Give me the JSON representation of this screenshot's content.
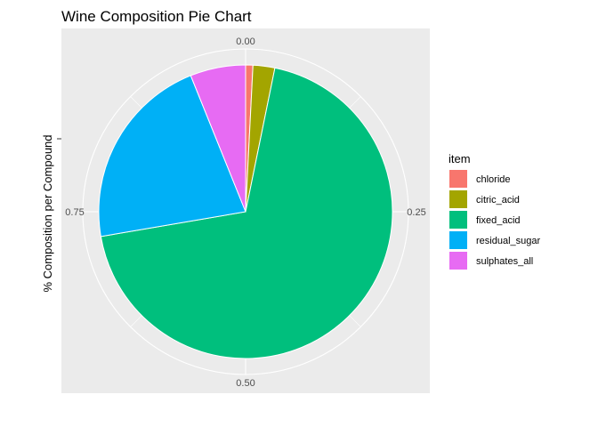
{
  "chart_data": {
    "type": "pie",
    "title": "Wine Composition Pie Chart",
    "ylabel": "% Composition per Compound",
    "xlabel": "",
    "legend_title": "item",
    "legend_position": "right",
    "categories": [
      "chloride",
      "citric_acid",
      "fixed_acid",
      "residual_sugar",
      "sulphates_all"
    ],
    "values": [
      0.008,
      0.024,
      0.691,
      0.216,
      0.061
    ],
    "colors": [
      "#F8766D",
      "#A3A500",
      "#00BF7D",
      "#00B0F6",
      "#E76BF3"
    ],
    "angular_ticks": [
      {
        "value": 0.0,
        "label": "0.00"
      },
      {
        "value": 0.25,
        "label": "0.25"
      },
      {
        "value": 0.5,
        "label": "0.50"
      },
      {
        "value": 0.75,
        "label": "0.75"
      }
    ],
    "panel_background": "#EBEBEB",
    "grid": true,
    "grid_color": "#FFFFFF"
  }
}
